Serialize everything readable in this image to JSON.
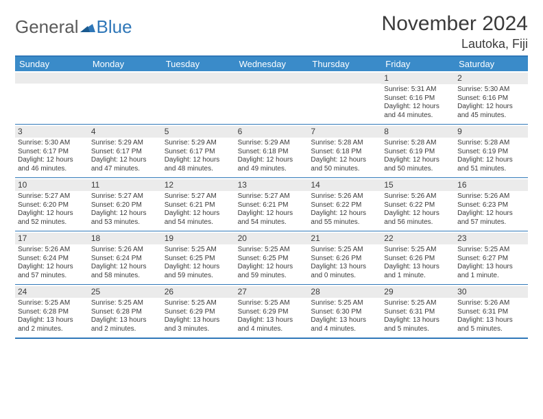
{
  "logo": {
    "text1": "General",
    "text2": "Blue"
  },
  "title": "November 2024",
  "location": "Lautoka, Fiji",
  "colors": {
    "header_bg": "#3a8bc9",
    "border": "#2f77b8",
    "daynum_bg": "#ebebeb",
    "text": "#3a3a3a",
    "white": "#ffffff"
  },
  "weekdays": [
    "Sunday",
    "Monday",
    "Tuesday",
    "Wednesday",
    "Thursday",
    "Friday",
    "Saturday"
  ],
  "weeks": [
    [
      {
        "num": "",
        "sunrise": "",
        "sunset": "",
        "daylight": ""
      },
      {
        "num": "",
        "sunrise": "",
        "sunset": "",
        "daylight": ""
      },
      {
        "num": "",
        "sunrise": "",
        "sunset": "",
        "daylight": ""
      },
      {
        "num": "",
        "sunrise": "",
        "sunset": "",
        "daylight": ""
      },
      {
        "num": "",
        "sunrise": "",
        "sunset": "",
        "daylight": ""
      },
      {
        "num": "1",
        "sunrise": "Sunrise: 5:31 AM",
        "sunset": "Sunset: 6:16 PM",
        "daylight": "Daylight: 12 hours and 44 minutes."
      },
      {
        "num": "2",
        "sunrise": "Sunrise: 5:30 AM",
        "sunset": "Sunset: 6:16 PM",
        "daylight": "Daylight: 12 hours and 45 minutes."
      }
    ],
    [
      {
        "num": "3",
        "sunrise": "Sunrise: 5:30 AM",
        "sunset": "Sunset: 6:17 PM",
        "daylight": "Daylight: 12 hours and 46 minutes."
      },
      {
        "num": "4",
        "sunrise": "Sunrise: 5:29 AM",
        "sunset": "Sunset: 6:17 PM",
        "daylight": "Daylight: 12 hours and 47 minutes."
      },
      {
        "num": "5",
        "sunrise": "Sunrise: 5:29 AM",
        "sunset": "Sunset: 6:17 PM",
        "daylight": "Daylight: 12 hours and 48 minutes."
      },
      {
        "num": "6",
        "sunrise": "Sunrise: 5:29 AM",
        "sunset": "Sunset: 6:18 PM",
        "daylight": "Daylight: 12 hours and 49 minutes."
      },
      {
        "num": "7",
        "sunrise": "Sunrise: 5:28 AM",
        "sunset": "Sunset: 6:18 PM",
        "daylight": "Daylight: 12 hours and 50 minutes."
      },
      {
        "num": "8",
        "sunrise": "Sunrise: 5:28 AM",
        "sunset": "Sunset: 6:19 PM",
        "daylight": "Daylight: 12 hours and 50 minutes."
      },
      {
        "num": "9",
        "sunrise": "Sunrise: 5:28 AM",
        "sunset": "Sunset: 6:19 PM",
        "daylight": "Daylight: 12 hours and 51 minutes."
      }
    ],
    [
      {
        "num": "10",
        "sunrise": "Sunrise: 5:27 AM",
        "sunset": "Sunset: 6:20 PM",
        "daylight": "Daylight: 12 hours and 52 minutes."
      },
      {
        "num": "11",
        "sunrise": "Sunrise: 5:27 AM",
        "sunset": "Sunset: 6:20 PM",
        "daylight": "Daylight: 12 hours and 53 minutes."
      },
      {
        "num": "12",
        "sunrise": "Sunrise: 5:27 AM",
        "sunset": "Sunset: 6:21 PM",
        "daylight": "Daylight: 12 hours and 54 minutes."
      },
      {
        "num": "13",
        "sunrise": "Sunrise: 5:27 AM",
        "sunset": "Sunset: 6:21 PM",
        "daylight": "Daylight: 12 hours and 54 minutes."
      },
      {
        "num": "14",
        "sunrise": "Sunrise: 5:26 AM",
        "sunset": "Sunset: 6:22 PM",
        "daylight": "Daylight: 12 hours and 55 minutes."
      },
      {
        "num": "15",
        "sunrise": "Sunrise: 5:26 AM",
        "sunset": "Sunset: 6:22 PM",
        "daylight": "Daylight: 12 hours and 56 minutes."
      },
      {
        "num": "16",
        "sunrise": "Sunrise: 5:26 AM",
        "sunset": "Sunset: 6:23 PM",
        "daylight": "Daylight: 12 hours and 57 minutes."
      }
    ],
    [
      {
        "num": "17",
        "sunrise": "Sunrise: 5:26 AM",
        "sunset": "Sunset: 6:24 PM",
        "daylight": "Daylight: 12 hours and 57 minutes."
      },
      {
        "num": "18",
        "sunrise": "Sunrise: 5:26 AM",
        "sunset": "Sunset: 6:24 PM",
        "daylight": "Daylight: 12 hours and 58 minutes."
      },
      {
        "num": "19",
        "sunrise": "Sunrise: 5:25 AM",
        "sunset": "Sunset: 6:25 PM",
        "daylight": "Daylight: 12 hours and 59 minutes."
      },
      {
        "num": "20",
        "sunrise": "Sunrise: 5:25 AM",
        "sunset": "Sunset: 6:25 PM",
        "daylight": "Daylight: 12 hours and 59 minutes."
      },
      {
        "num": "21",
        "sunrise": "Sunrise: 5:25 AM",
        "sunset": "Sunset: 6:26 PM",
        "daylight": "Daylight: 13 hours and 0 minutes."
      },
      {
        "num": "22",
        "sunrise": "Sunrise: 5:25 AM",
        "sunset": "Sunset: 6:26 PM",
        "daylight": "Daylight: 13 hours and 1 minute."
      },
      {
        "num": "23",
        "sunrise": "Sunrise: 5:25 AM",
        "sunset": "Sunset: 6:27 PM",
        "daylight": "Daylight: 13 hours and 1 minute."
      }
    ],
    [
      {
        "num": "24",
        "sunrise": "Sunrise: 5:25 AM",
        "sunset": "Sunset: 6:28 PM",
        "daylight": "Daylight: 13 hours and 2 minutes."
      },
      {
        "num": "25",
        "sunrise": "Sunrise: 5:25 AM",
        "sunset": "Sunset: 6:28 PM",
        "daylight": "Daylight: 13 hours and 2 minutes."
      },
      {
        "num": "26",
        "sunrise": "Sunrise: 5:25 AM",
        "sunset": "Sunset: 6:29 PM",
        "daylight": "Daylight: 13 hours and 3 minutes."
      },
      {
        "num": "27",
        "sunrise": "Sunrise: 5:25 AM",
        "sunset": "Sunset: 6:29 PM",
        "daylight": "Daylight: 13 hours and 4 minutes."
      },
      {
        "num": "28",
        "sunrise": "Sunrise: 5:25 AM",
        "sunset": "Sunset: 6:30 PM",
        "daylight": "Daylight: 13 hours and 4 minutes."
      },
      {
        "num": "29",
        "sunrise": "Sunrise: 5:25 AM",
        "sunset": "Sunset: 6:31 PM",
        "daylight": "Daylight: 13 hours and 5 minutes."
      },
      {
        "num": "30",
        "sunrise": "Sunrise: 5:26 AM",
        "sunset": "Sunset: 6:31 PM",
        "daylight": "Daylight: 13 hours and 5 minutes."
      }
    ]
  ]
}
